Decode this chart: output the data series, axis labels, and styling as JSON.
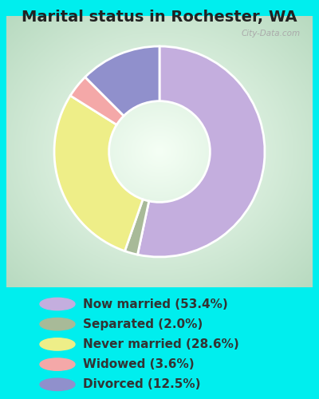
{
  "title": "Marital status in Rochester, WA",
  "slices": [
    {
      "label": "Now married (53.4%)",
      "value": 53.4,
      "color": "#C4AEDE"
    },
    {
      "label": "Separated (2.0%)",
      "value": 2.0,
      "color": "#A8BA98"
    },
    {
      "label": "Never married (28.6%)",
      "value": 28.6,
      "color": "#EEEE88"
    },
    {
      "label": "Widowed (3.6%)",
      "value": 3.6,
      "color": "#F4A8A8"
    },
    {
      "label": "Divorced (12.5%)",
      "value": 12.5,
      "color": "#9090CC"
    }
  ],
  "bg_outer": "#00EEEE",
  "title_color": "#222222",
  "title_fontsize": 14,
  "legend_fontsize": 11,
  "watermark": "City-Data.com",
  "start_angle": 90,
  "donut_width": 0.52
}
